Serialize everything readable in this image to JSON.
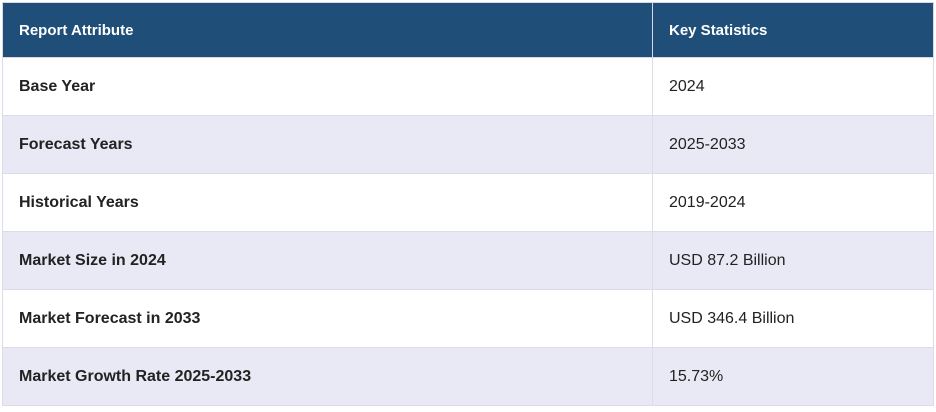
{
  "table": {
    "header": [
      "Report Attribute",
      "Key Statistics"
    ],
    "rows": [
      [
        "Base Year",
        "2024"
      ],
      [
        "Forecast Years",
        "2025-2033"
      ],
      [
        "Historical Years",
        "2019-2024"
      ],
      [
        "Market Size in 2024",
        "USD 87.2 Billion"
      ],
      [
        "Market Forecast in 2033",
        "USD 346.4 Billion"
      ],
      [
        "Market Growth Rate 2025-2033",
        "15.73%"
      ]
    ]
  }
}
